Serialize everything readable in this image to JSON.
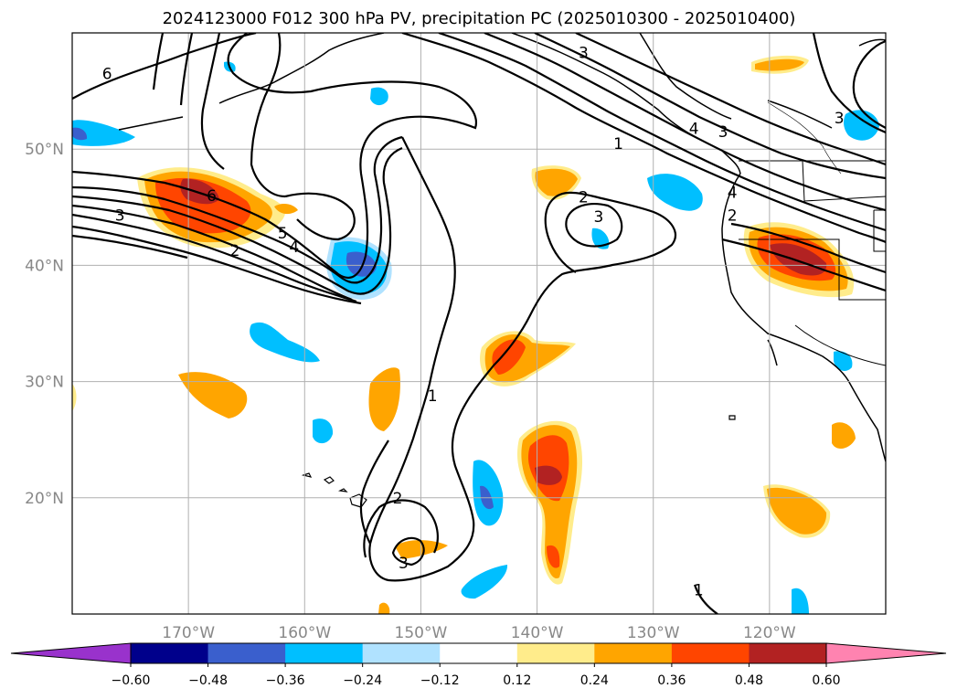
{
  "chart_data": {
    "type": "contour-map",
    "title": "2024123000 F012 300 hPa PV, precipitation PC (2025010300 - 2025010400)",
    "lon_range": [
      -180,
      -110
    ],
    "lat_range": [
      10,
      60
    ],
    "x_ticks": [
      {
        "value": -170,
        "label": "170°W"
      },
      {
        "value": -160,
        "label": "160°W"
      },
      {
        "value": -150,
        "label": "150°W"
      },
      {
        "value": -140,
        "label": "140°W"
      },
      {
        "value": -130,
        "label": "130°W"
      },
      {
        "value": -120,
        "label": "120°W"
      }
    ],
    "y_ticks": [
      {
        "value": 20,
        "label": "20°N"
      },
      {
        "value": 30,
        "label": "30°N"
      },
      {
        "value": 40,
        "label": "40°N"
      },
      {
        "value": 50,
        "label": "50°N"
      }
    ],
    "grid": true,
    "colorbar": {
      "orientation": "horizontal",
      "extend": "both",
      "levels": [
        "−0.60",
        "−0.48",
        "−0.36",
        "−0.24",
        "−0.12",
        "0.12",
        "0.24",
        "0.36",
        "0.48",
        "0.60"
      ],
      "colors": [
        "#9932cc",
        "#00008b",
        "#3a5fcd",
        "#00bfff",
        "#b0e2ff",
        "#ffffff",
        "#ffec8b",
        "#ffa500",
        "#ff4500",
        "#b22222",
        "#ff83b0"
      ]
    },
    "contour_labels": [
      {
        "text": "6",
        "lon": -177,
        "lat": 56.5
      },
      {
        "text": "3",
        "lon": -136,
        "lat": 58.3
      },
      {
        "text": "1",
        "lon": -133,
        "lat": 50.5
      },
      {
        "text": "4",
        "lon": -126.5,
        "lat": 51.8
      },
      {
        "text": "3",
        "lon": -124,
        "lat": 51.5
      },
      {
        "text": "3",
        "lon": -114,
        "lat": 52.7
      },
      {
        "text": "6",
        "lon": -168,
        "lat": 46
      },
      {
        "text": "3",
        "lon": -175.9,
        "lat": 44.3
      },
      {
        "text": "2",
        "lon": -136,
        "lat": 45.9
      },
      {
        "text": "3",
        "lon": -134.7,
        "lat": 44.2
      },
      {
        "text": "4",
        "lon": -123.2,
        "lat": 46.3
      },
      {
        "text": "2",
        "lon": -123.2,
        "lat": 44.3
      },
      {
        "text": "5",
        "lon": -161.9,
        "lat": 42.8
      },
      {
        "text": "4",
        "lon": -160.9,
        "lat": 41.6
      },
      {
        "text": "2",
        "lon": -166,
        "lat": 41.3
      },
      {
        "text": "1",
        "lon": -149,
        "lat": 28.8
      },
      {
        "text": "2",
        "lon": -152,
        "lat": 20.0
      },
      {
        "text": "3",
        "lon": -151.5,
        "lat": 14.4
      },
      {
        "text": "1",
        "lon": -126.1,
        "lat": 12.1
      }
    ],
    "shaded_regions": [
      {
        "category": "precip-positive",
        "lat": 44.5,
        "lon": -167.5,
        "max": "0.48"
      },
      {
        "category": "precip-negative",
        "lat": 40,
        "lon": -154.5,
        "min": "−0.48"
      },
      {
        "category": "precip-positive",
        "lat": 41.5,
        "lon": -117.5,
        "max": "0.48"
      },
      {
        "category": "precip-positive",
        "lat": 22.5,
        "lon": -139,
        "max": "0.48"
      },
      {
        "category": "precip-positive",
        "lat": 32,
        "lon": -140.5,
        "max": "0.36"
      },
      {
        "category": "precip-negative",
        "lat": 47.5,
        "lon": -128,
        "min": "−0.36"
      },
      {
        "category": "precip-negative",
        "lat": 19.8,
        "lon": -144.4,
        "min": "−0.48"
      }
    ]
  }
}
